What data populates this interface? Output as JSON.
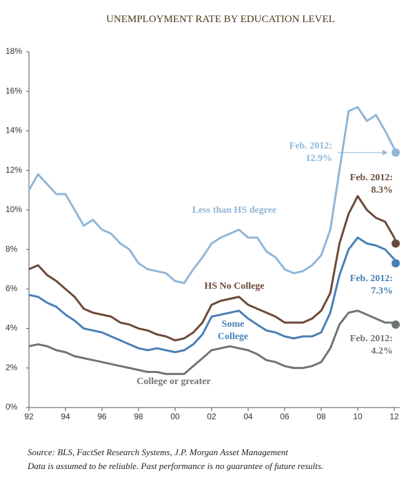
{
  "chart_data": {
    "type": "line",
    "title": "UNEMPLOYMENT RATE BY EDUCATION LEVEL",
    "x": [
      1992,
      1992.5,
      1993,
      1993.5,
      1994,
      1994.5,
      1995,
      1995.5,
      1996,
      1996.5,
      1997,
      1997.5,
      1998,
      1998.5,
      1999,
      1999.5,
      2000,
      2000.5,
      2001,
      2001.5,
      2002,
      2002.5,
      2003,
      2003.5,
      2004,
      2004.5,
      2005,
      2005.5,
      2006,
      2006.5,
      2007,
      2007.5,
      2008,
      2008.5,
      2009,
      2009.5,
      2010,
      2010.5,
      2011,
      2011.5,
      2012,
      2012.08
    ],
    "series": [
      {
        "name": "Less than HS degree",
        "color": "#8fb6d8",
        "end_note": "Feb. 2012:",
        "end_value_label": "12.9%",
        "values": [
          11.0,
          11.8,
          11.3,
          10.8,
          10.8,
          10.0,
          9.2,
          9.5,
          9.0,
          8.8,
          8.3,
          8.0,
          7.3,
          7.0,
          6.9,
          6.8,
          6.4,
          6.3,
          7.0,
          7.6,
          8.3,
          8.6,
          8.8,
          9.0,
          8.6,
          8.6,
          7.9,
          7.6,
          7.0,
          6.8,
          6.9,
          7.2,
          7.7,
          9.0,
          12.0,
          15.0,
          15.2,
          14.5,
          14.8,
          14.0,
          13.1,
          12.9
        ]
      },
      {
        "name": "HS No College",
        "color": "#6b4a3a",
        "end_note": "Feb. 2012:",
        "end_value_label": "8.3%",
        "values": [
          7.0,
          7.2,
          6.7,
          6.4,
          6.0,
          5.6,
          5.0,
          4.8,
          4.7,
          4.6,
          4.3,
          4.2,
          4.0,
          3.9,
          3.7,
          3.6,
          3.4,
          3.5,
          3.8,
          4.3,
          5.2,
          5.4,
          5.5,
          5.6,
          5.2,
          5.0,
          4.8,
          4.6,
          4.3,
          4.3,
          4.3,
          4.5,
          4.9,
          5.8,
          8.3,
          9.8,
          10.7,
          10.0,
          9.6,
          9.4,
          8.6,
          8.3
        ]
      },
      {
        "name": "Some College",
        "color": "#4a7fb5",
        "end_note": "Feb. 2012:",
        "end_value_label": "7.3%",
        "values": [
          5.7,
          5.6,
          5.3,
          5.1,
          4.7,
          4.4,
          4.0,
          3.9,
          3.8,
          3.6,
          3.4,
          3.2,
          3.0,
          2.9,
          3.0,
          2.9,
          2.8,
          2.9,
          3.2,
          3.7,
          4.6,
          4.7,
          4.8,
          4.9,
          4.5,
          4.2,
          3.9,
          3.8,
          3.6,
          3.5,
          3.6,
          3.6,
          3.8,
          4.8,
          6.7,
          8.0,
          8.6,
          8.3,
          8.2,
          8.0,
          7.5,
          7.3
        ]
      },
      {
        "name": "College or greater",
        "color": "#6f7571",
        "end_note": "Feb. 2012:",
        "end_value_label": "4.2%",
        "values": [
          3.1,
          3.2,
          3.1,
          2.9,
          2.8,
          2.6,
          2.5,
          2.4,
          2.3,
          2.2,
          2.1,
          2.0,
          1.9,
          1.8,
          1.8,
          1.7,
          1.7,
          1.7,
          2.1,
          2.5,
          2.9,
          3.0,
          3.1,
          3.0,
          2.9,
          2.7,
          2.4,
          2.3,
          2.1,
          2.0,
          2.0,
          2.1,
          2.3,
          3.0,
          4.2,
          4.8,
          4.9,
          4.7,
          4.5,
          4.3,
          4.3,
          4.2
        ]
      }
    ],
    "xlim": [
      1992,
      2012.3
    ],
    "xticks": [
      {
        "value": 1992,
        "label": "92"
      },
      {
        "value": 1994,
        "label": "94"
      },
      {
        "value": 1996,
        "label": "96"
      },
      {
        "value": 1998,
        "label": "98"
      },
      {
        "value": 2000,
        "label": "00"
      },
      {
        "value": 2002,
        "label": "02"
      },
      {
        "value": 2004,
        "label": "04"
      },
      {
        "value": 2006,
        "label": "06"
      },
      {
        "value": 2008,
        "label": "08"
      },
      {
        "value": 2010,
        "label": "10"
      },
      {
        "value": 2012,
        "label": "12"
      }
    ],
    "ylim": [
      0,
      18
    ],
    "yticks": [
      {
        "value": 0,
        "label": "0%"
      },
      {
        "value": 2,
        "label": "2%"
      },
      {
        "value": 4,
        "label": "4%"
      },
      {
        "value": 6,
        "label": "6%"
      },
      {
        "value": 8,
        "label": "8%"
      },
      {
        "value": 10,
        "label": "10%"
      },
      {
        "value": 12,
        "label": "12%"
      },
      {
        "value": 14,
        "label": "14%"
      },
      {
        "value": 16,
        "label": "16%"
      },
      {
        "value": 18,
        "label": "18%"
      }
    ],
    "source": "Source: BLS, FactSet Research Systems, J.P. Morgan Asset Management",
    "disclaimer": "Data is assumed to be reliable. Past performance is no guarantee of future results."
  }
}
